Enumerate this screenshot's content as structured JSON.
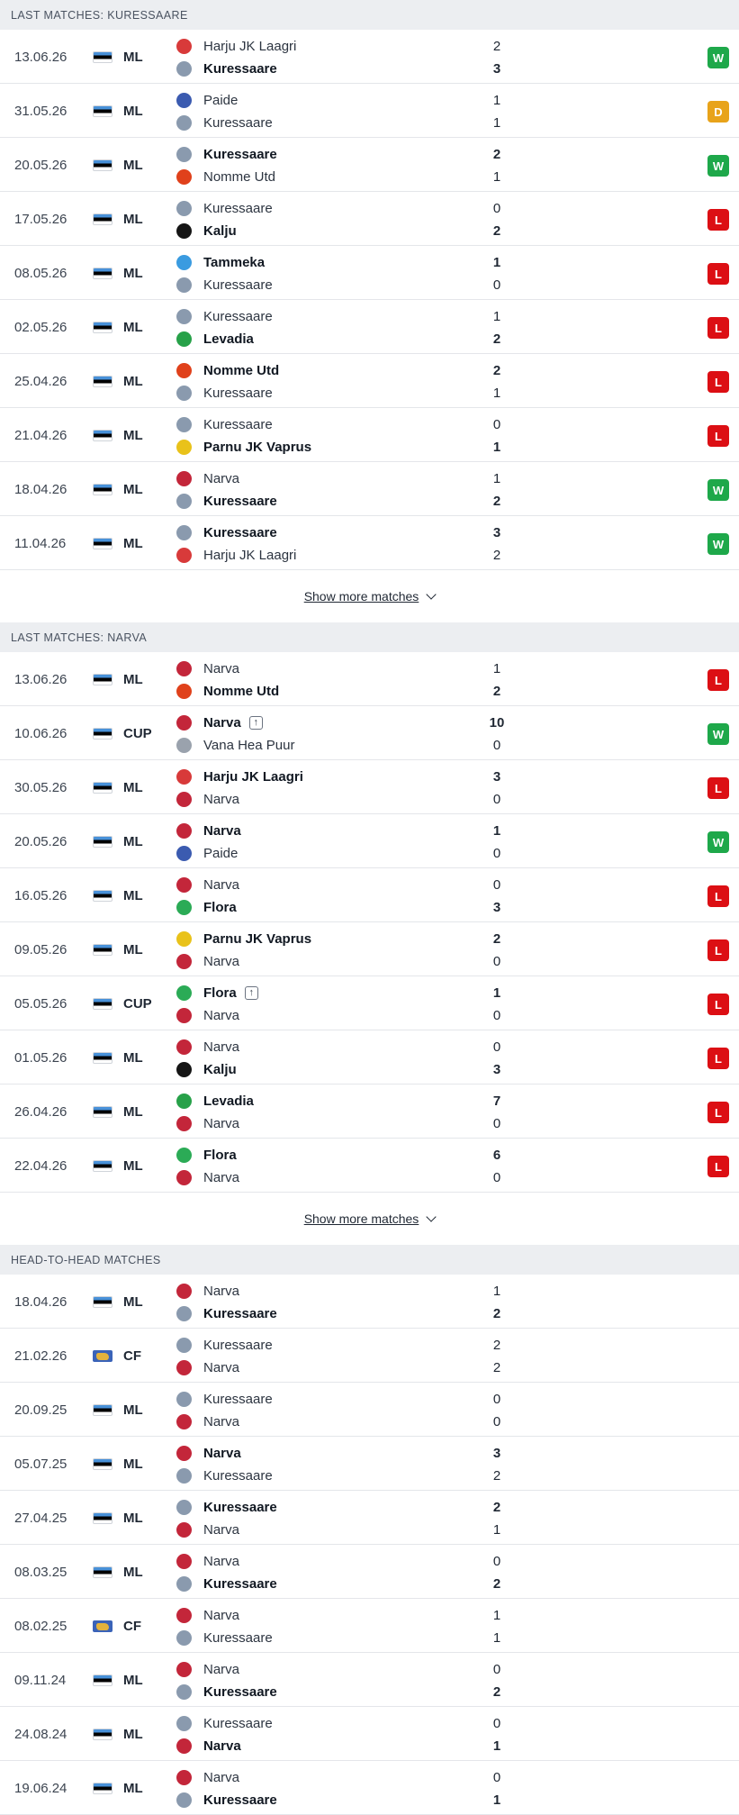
{
  "sections": [
    {
      "title": "LAST MATCHES: KURESSAARE",
      "show_more": "Show more matches",
      "matches": [
        {
          "date": "13.06.26",
          "flag": "estonia-flag",
          "comp": "ML",
          "home": "Harju JK Laagri",
          "home_logo": "laagri",
          "away": "Kuressaare",
          "away_logo": "kuressaare",
          "hs": "2",
          "as": "3",
          "winner": "away",
          "result": "W"
        },
        {
          "date": "31.05.26",
          "flag": "estonia-flag",
          "comp": "ML",
          "home": "Paide",
          "home_logo": "paide",
          "away": "Kuressaare",
          "away_logo": "kuressaare",
          "hs": "1",
          "as": "1",
          "winner": "none",
          "result": "D"
        },
        {
          "date": "20.05.26",
          "flag": "estonia-flag",
          "comp": "ML",
          "home": "Kuressaare",
          "home_logo": "kuressaare",
          "away": "Nomme Utd",
          "away_logo": "nomme",
          "hs": "2",
          "as": "1",
          "winner": "home",
          "result": "W"
        },
        {
          "date": "17.05.26",
          "flag": "estonia-flag",
          "comp": "ML",
          "home": "Kuressaare",
          "home_logo": "kuressaare",
          "away": "Kalju",
          "away_logo": "kalju",
          "hs": "0",
          "as": "2",
          "winner": "away",
          "result": "L"
        },
        {
          "date": "08.05.26",
          "flag": "estonia-flag",
          "comp": "ML",
          "home": "Tammeka",
          "home_logo": "tammeka",
          "away": "Kuressaare",
          "away_logo": "kuressaare",
          "hs": "1",
          "as": "0",
          "winner": "home",
          "result": "L"
        },
        {
          "date": "02.05.26",
          "flag": "estonia-flag",
          "comp": "ML",
          "home": "Kuressaare",
          "home_logo": "kuressaare",
          "away": "Levadia",
          "away_logo": "levadia",
          "hs": "1",
          "as": "2",
          "winner": "away",
          "result": "L"
        },
        {
          "date": "25.04.26",
          "flag": "estonia-flag",
          "comp": "ML",
          "home": "Nomme Utd",
          "home_logo": "nomme",
          "away": "Kuressaare",
          "away_logo": "kuressaare",
          "hs": "2",
          "as": "1",
          "winner": "home",
          "result": "L"
        },
        {
          "date": "21.04.26",
          "flag": "estonia-flag",
          "comp": "ML",
          "home": "Kuressaare",
          "home_logo": "kuressaare",
          "away": "Parnu JK Vaprus",
          "away_logo": "vaprus",
          "hs": "0",
          "as": "1",
          "winner": "away",
          "result": "L"
        },
        {
          "date": "18.04.26",
          "flag": "estonia-flag",
          "comp": "ML",
          "home": "Narva",
          "home_logo": "narva",
          "away": "Kuressaare",
          "away_logo": "kuressaare",
          "hs": "1",
          "as": "2",
          "winner": "away",
          "result": "W"
        },
        {
          "date": "11.04.26",
          "flag": "estonia-flag",
          "comp": "ML",
          "home": "Kuressaare",
          "home_logo": "kuressaare",
          "away": "Harju JK Laagri",
          "away_logo": "laagri",
          "hs": "3",
          "as": "2",
          "winner": "home",
          "result": "W"
        }
      ]
    },
    {
      "title": "LAST MATCHES: NARVA",
      "show_more": "Show more matches",
      "matches": [
        {
          "date": "13.06.26",
          "flag": "estonia-flag",
          "comp": "ML",
          "home": "Narva",
          "home_logo": "narva",
          "away": "Nomme Utd",
          "away_logo": "nomme",
          "hs": "1",
          "as": "2",
          "winner": "away",
          "result": "L"
        },
        {
          "date": "10.06.26",
          "flag": "estonia-flag",
          "comp": "CUP",
          "home": "Narva",
          "home_logo": "narva",
          "away": "Vana Hea Puur",
          "away_logo": "puur",
          "hs": "10",
          "as": "0",
          "winner": "home",
          "advance": "home",
          "result": "W"
        },
        {
          "date": "30.05.26",
          "flag": "estonia-flag",
          "comp": "ML",
          "home": "Harju JK Laagri",
          "home_logo": "laagri",
          "away": "Narva",
          "away_logo": "narva",
          "hs": "3",
          "as": "0",
          "winner": "home",
          "result": "L"
        },
        {
          "date": "20.05.26",
          "flag": "estonia-flag",
          "comp": "ML",
          "home": "Narva",
          "home_logo": "narva",
          "away": "Paide",
          "away_logo": "paide",
          "hs": "1",
          "as": "0",
          "winner": "home",
          "result": "W"
        },
        {
          "date": "16.05.26",
          "flag": "estonia-flag",
          "comp": "ML",
          "home": "Narva",
          "home_logo": "narva",
          "away": "Flora",
          "away_logo": "flora",
          "hs": "0",
          "as": "3",
          "winner": "away",
          "result": "L"
        },
        {
          "date": "09.05.26",
          "flag": "estonia-flag",
          "comp": "ML",
          "home": "Parnu JK Vaprus",
          "home_logo": "vaprus",
          "away": "Narva",
          "away_logo": "narva",
          "hs": "2",
          "as": "0",
          "winner": "home",
          "result": "L"
        },
        {
          "date": "05.05.26",
          "flag": "estonia-flag",
          "comp": "CUP",
          "home": "Flora",
          "home_logo": "flora",
          "away": "Narva",
          "away_logo": "narva",
          "hs": "1",
          "as": "0",
          "winner": "home",
          "advance": "home",
          "result": "L"
        },
        {
          "date": "01.05.26",
          "flag": "estonia-flag",
          "comp": "ML",
          "home": "Narva",
          "home_logo": "narva",
          "away": "Kalju",
          "away_logo": "kalju",
          "hs": "0",
          "as": "3",
          "winner": "away",
          "result": "L"
        },
        {
          "date": "26.04.26",
          "flag": "estonia-flag",
          "comp": "ML",
          "home": "Levadia",
          "home_logo": "levadia",
          "away": "Narva",
          "away_logo": "narva",
          "hs": "7",
          "as": "0",
          "winner": "home",
          "result": "L"
        },
        {
          "date": "22.04.26",
          "flag": "estonia-flag",
          "comp": "ML",
          "home": "Flora",
          "home_logo": "flora",
          "away": "Narva",
          "away_logo": "narva",
          "hs": "6",
          "as": "0",
          "winner": "home",
          "result": "L"
        }
      ]
    },
    {
      "title": "HEAD-TO-HEAD MATCHES",
      "show_more": "",
      "matches": [
        {
          "date": "18.04.26",
          "flag": "estonia-flag",
          "comp": "ML",
          "home": "Narva",
          "home_logo": "narva",
          "away": "Kuressaare",
          "away_logo": "kuressaare",
          "hs": "1",
          "as": "2",
          "winner": "away",
          "result": ""
        },
        {
          "date": "21.02.26",
          "flag": "world-flag",
          "comp": "CF",
          "home": "Kuressaare",
          "home_logo": "kuressaare",
          "away": "Narva",
          "away_logo": "narva",
          "hs": "2",
          "as": "2",
          "winner": "none",
          "result": ""
        },
        {
          "date": "20.09.25",
          "flag": "estonia-flag",
          "comp": "ML",
          "home": "Kuressaare",
          "home_logo": "kuressaare",
          "away": "Narva",
          "away_logo": "narva",
          "hs": "0",
          "as": "0",
          "winner": "none",
          "result": ""
        },
        {
          "date": "05.07.25",
          "flag": "estonia-flag",
          "comp": "ML",
          "home": "Narva",
          "home_logo": "narva",
          "away": "Kuressaare",
          "away_logo": "kuressaare",
          "hs": "3",
          "as": "2",
          "winner": "home",
          "result": ""
        },
        {
          "date": "27.04.25",
          "flag": "estonia-flag",
          "comp": "ML",
          "home": "Kuressaare",
          "home_logo": "kuressaare",
          "away": "Narva",
          "away_logo": "narva",
          "hs": "2",
          "as": "1",
          "winner": "home",
          "result": ""
        },
        {
          "date": "08.03.25",
          "flag": "estonia-flag",
          "comp": "ML",
          "home": "Narva",
          "home_logo": "narva",
          "away": "Kuressaare",
          "away_logo": "kuressaare",
          "hs": "0",
          "as": "2",
          "winner": "away",
          "result": ""
        },
        {
          "date": "08.02.25",
          "flag": "world-flag",
          "comp": "CF",
          "home": "Narva",
          "home_logo": "narva",
          "away": "Kuressaare",
          "away_logo": "kuressaare",
          "hs": "1",
          "as": "1",
          "winner": "none",
          "result": ""
        },
        {
          "date": "09.11.24",
          "flag": "estonia-flag",
          "comp": "ML",
          "home": "Narva",
          "home_logo": "narva",
          "away": "Kuressaare",
          "away_logo": "kuressaare",
          "hs": "0",
          "as": "2",
          "winner": "away",
          "result": ""
        },
        {
          "date": "24.08.24",
          "flag": "estonia-flag",
          "comp": "ML",
          "home": "Kuressaare",
          "home_logo": "kuressaare",
          "away": "Narva",
          "away_logo": "narva",
          "hs": "0",
          "as": "1",
          "winner": "away",
          "result": ""
        },
        {
          "date": "19.06.24",
          "flag": "estonia-flag",
          "comp": "ML",
          "home": "Narva",
          "home_logo": "narva",
          "away": "Kuressaare",
          "away_logo": "kuressaare",
          "hs": "0",
          "as": "1",
          "winner": "away",
          "result": ""
        }
      ]
    }
  ],
  "logo_colors": {
    "kuressaare": "#8a9aae",
    "laagri": "#d83a3a",
    "paide": "#3b5bb0",
    "nomme": "#e0411b",
    "kalju": "#151515",
    "tammeka": "#3a9be0",
    "levadia": "#27a149",
    "vaprus": "#e9c21a",
    "narva": "#c3263a",
    "flora": "#2bab56",
    "puur": "#9aa2ad"
  },
  "result_colors": {
    "W": "#1ea84a",
    "D": "#e8a31a",
    "L": "#dc0f14"
  }
}
